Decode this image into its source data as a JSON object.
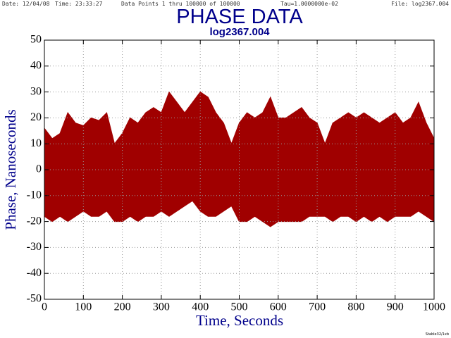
{
  "header": {
    "date": "Date: 12/04/08",
    "time": "Time: 23:33:27",
    "points": "Data Points 1 thru 100000 of 100000",
    "tau": "Tau=1.0000000e-02",
    "file": "File: log2367.004"
  },
  "footer": "Stable32/1xb",
  "chart_data": {
    "type": "area",
    "title": "PHASE DATA",
    "subtitle": "log2367.004",
    "xlabel": "Time, Seconds",
    "ylabel": "Phase, Nanoseconds",
    "x": [
      0,
      20,
      40,
      60,
      80,
      100,
      120,
      140,
      160,
      180,
      200,
      220,
      240,
      260,
      280,
      300,
      320,
      340,
      360,
      380,
      400,
      420,
      440,
      460,
      480,
      500,
      520,
      540,
      560,
      580,
      600,
      620,
      640,
      660,
      680,
      700,
      720,
      740,
      760,
      780,
      800,
      820,
      840,
      860,
      880,
      900,
      920,
      940,
      960,
      980,
      1000
    ],
    "series": [
      {
        "color": "#a00000",
        "values": [
          16,
          12,
          14,
          22,
          18,
          17,
          20,
          19,
          22,
          10,
          14,
          20,
          18,
          22,
          24,
          22,
          30,
          26,
          22,
          26,
          30,
          28,
          22,
          18,
          10,
          18,
          22,
          20,
          22,
          28,
          20,
          20,
          22,
          24,
          20,
          18,
          10,
          18,
          20,
          22,
          20,
          22,
          20,
          18,
          20,
          22,
          18,
          20,
          26,
          18,
          12
        ]
      },
      {
        "color": "#a00000",
        "values": [
          -18,
          -20,
          -18,
          -20,
          -18,
          -16,
          -18,
          -18,
          -16,
          -20,
          -20,
          -18,
          -20,
          -18,
          -18,
          -16,
          -18,
          -16,
          -14,
          -12,
          -16,
          -18,
          -18,
          -16,
          -14,
          -20,
          -20,
          -18,
          -20,
          -22,
          -20,
          -20,
          -20,
          -20,
          -18,
          -18,
          -18,
          -20,
          -18,
          -18,
          -20,
          -18,
          -20,
          -18,
          -20,
          -18,
          -18,
          -18,
          -16,
          -18,
          -20
        ]
      }
    ],
    "xlim": [
      0,
      1000
    ],
    "xticks": [
      0,
      100,
      200,
      300,
      400,
      500,
      600,
      700,
      800,
      900,
      1000
    ],
    "ylim": [
      -50,
      50
    ],
    "yticks": [
      -50,
      -40,
      -30,
      -20,
      -10,
      0,
      10,
      20,
      30,
      40,
      50
    ],
    "grid": true
  }
}
